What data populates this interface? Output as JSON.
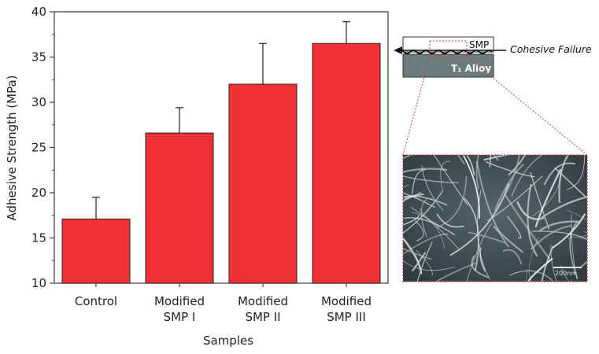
{
  "chart_data": {
    "type": "bar",
    "categories": [
      [
        "Control"
      ],
      [
        "Modified",
        "SMP I"
      ],
      [
        "Modified",
        "SMP II"
      ],
      [
        "Modified",
        "SMP III"
      ]
    ],
    "values": [
      17.1,
      26.6,
      32.0,
      36.5
    ],
    "error_upper": [
      19.5,
      29.4,
      36.5,
      38.9
    ],
    "xlabel": "Samples",
    "ylabel": "Adhesive Strength (MPa)",
    "ylim": [
      10,
      40
    ],
    "yticks": [
      10,
      15,
      20,
      25,
      30,
      35,
      40
    ],
    "grid": false,
    "bar_color": "#ee3136"
  },
  "inset": {
    "top_layer_label": "SMP",
    "bottom_layer_label": "T₁ Alloy",
    "failure_label": "Cohesive Failure",
    "scale_bar_label": "200nm",
    "layer_color": "#6c7c7c",
    "callout_color": "#d23a3a"
  }
}
